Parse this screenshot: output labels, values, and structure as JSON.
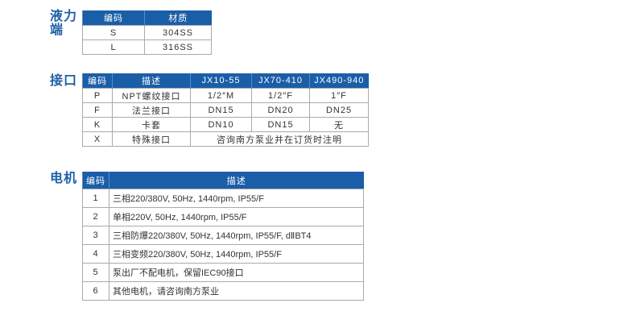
{
  "sections": {
    "fluid_end": "液力端",
    "connection": "接口",
    "motor": "电机"
  },
  "fluid_end_table": {
    "headers": [
      "编码",
      "材质"
    ],
    "rows": [
      [
        "S",
        "304SS"
      ],
      [
        "L",
        "316SS"
      ]
    ]
  },
  "connection_table": {
    "headers": [
      "编码",
      "描述",
      "JX10-55",
      "JX70-410",
      "JX490-940"
    ],
    "rows": [
      [
        "P",
        "NPT螺纹接口",
        "1/2″M",
        "1/2″F",
        "1″F"
      ],
      [
        "F",
        "法兰接口",
        "DN15",
        "DN20",
        "DN25"
      ],
      [
        "K",
        "卡套",
        "DN10",
        "DN15",
        "无"
      ]
    ],
    "special": {
      "code": "X",
      "desc": "特殊接口",
      "note": "咨询南方泵业并在订货时注明"
    }
  },
  "motor_table": {
    "headers": [
      "编码",
      "描述"
    ],
    "rows": [
      [
        "1",
        "三相220/380V, 50Hz, 1440rpm, IP55/F"
      ],
      [
        "2",
        "单相220V, 50Hz, 1440rpm, IP55/F"
      ],
      [
        "3",
        "三相防爆220/380V, 50Hz, 1440rpm, IP55/F, dⅡBT4"
      ],
      [
        "4",
        "三相变频220/380V, 50Hz, 1440rpm, IP55/F"
      ],
      [
        "5",
        "泵出厂不配电机，保留IEC90接口"
      ],
      [
        "6",
        "其他电机，请咨询南方泵业"
      ]
    ]
  }
}
